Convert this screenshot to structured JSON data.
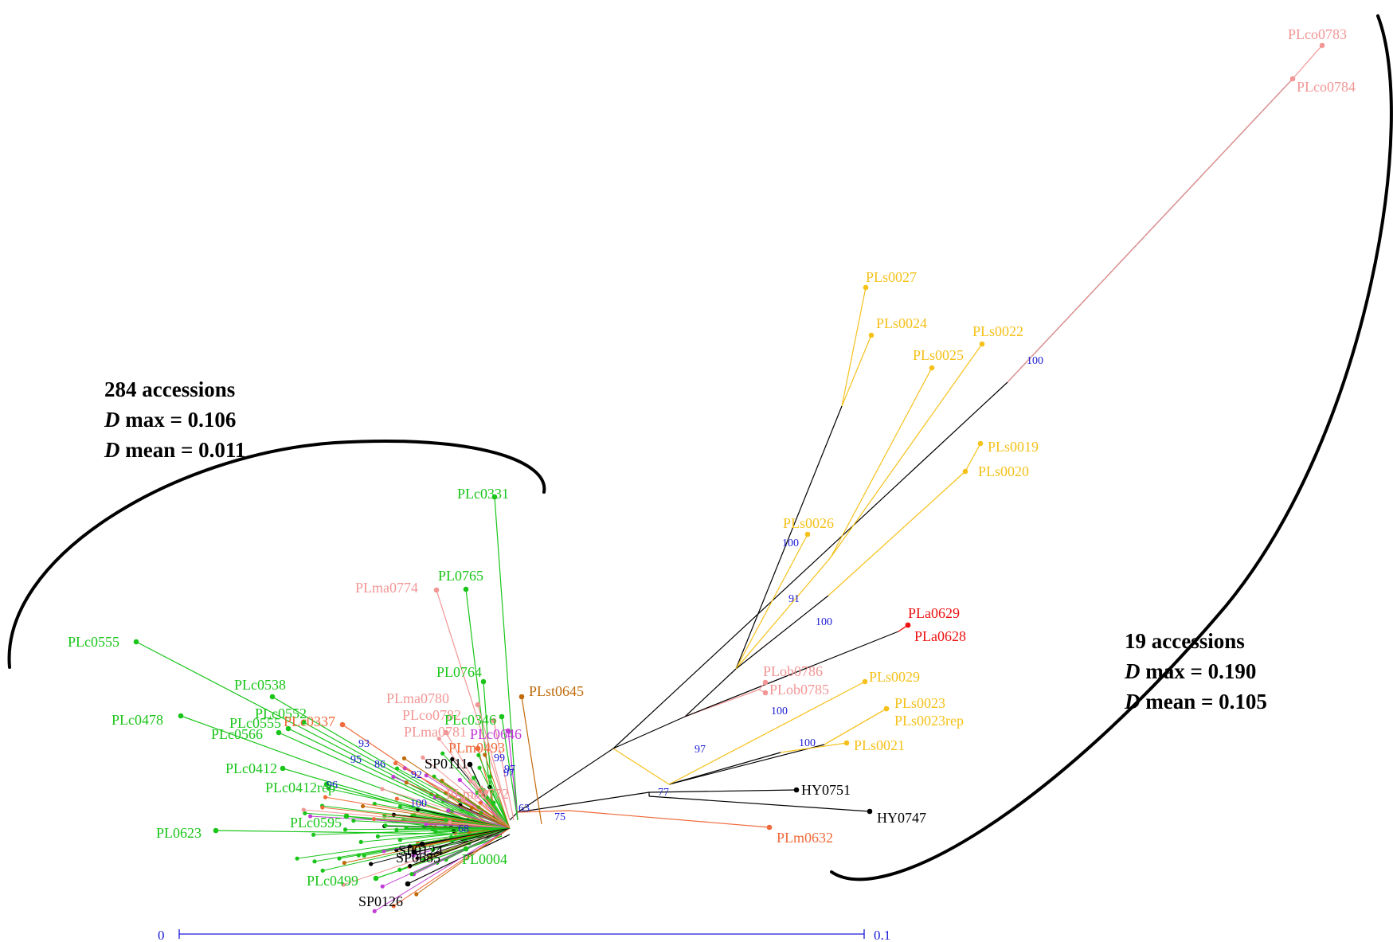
{
  "colors": {
    "green": "#19c519",
    "pink": "#f29696",
    "salmon": "#ef6a3a",
    "gold": "#f5c11a",
    "red": "#ee1111",
    "purple": "#c33cd6",
    "brown": "#c06a0a",
    "black": "#000000",
    "blue": "#1a1ad6"
  },
  "clusters": {
    "left": {
      "count_text": "284 accessions",
      "dmax_label": "max = 0.106",
      "dmean_label": "mean = 0.011",
      "d_symbol": "D"
    },
    "right": {
      "count_text": "19 accessions",
      "dmax_label": "max = 0.190",
      "dmean_label": "mean = 0.105",
      "d_symbol": "D"
    }
  },
  "scale_bar": {
    "start_label": "0",
    "end_label": "0.1"
  },
  "leaves": [
    {
      "label": "PLco0783",
      "color": "pink"
    },
    {
      "label": "PLco0784",
      "color": "pink"
    },
    {
      "label": "PLs0027",
      "color": "gold"
    },
    {
      "label": "PLs0024",
      "color": "gold"
    },
    {
      "label": "PLs0022",
      "color": "gold"
    },
    {
      "label": "PLs0025",
      "color": "gold"
    },
    {
      "label": "PLs0019",
      "color": "gold"
    },
    {
      "label": "PLs0020",
      "color": "gold"
    },
    {
      "label": "PLs0026",
      "color": "gold"
    },
    {
      "label": "PLa0629",
      "color": "red"
    },
    {
      "label": "PLa0628",
      "color": "red"
    },
    {
      "label": "PLob0786",
      "color": "pink"
    },
    {
      "label": "PLob0785",
      "color": "pink"
    },
    {
      "label": "PLs0029",
      "color": "gold"
    },
    {
      "label": "PLs0023",
      "color": "gold"
    },
    {
      "label": "PLs0023rep",
      "color": "gold"
    },
    {
      "label": "PLs0021",
      "color": "gold"
    },
    {
      "label": "HY0751",
      "color": "black"
    },
    {
      "label": "HY0747",
      "color": "black"
    },
    {
      "label": "PLm0632",
      "color": "salmon"
    },
    {
      "label": "PLc0331",
      "color": "green"
    },
    {
      "label": "PL0765",
      "color": "green"
    },
    {
      "label": "PLma0774",
      "color": "pink"
    },
    {
      "label": "PL0764",
      "color": "green"
    },
    {
      "label": "PLst0645",
      "color": "brown"
    },
    {
      "label": "PLma0780",
      "color": "pink"
    },
    {
      "label": "PLco0782",
      "color": "pink"
    },
    {
      "label": "PLc0555",
      "color": "green"
    },
    {
      "label": "PLc0538",
      "color": "green"
    },
    {
      "label": "PLc0478",
      "color": "green"
    },
    {
      "label": "PLc0552",
      "color": "green"
    },
    {
      "label": "PLc0566",
      "color": "green"
    },
    {
      "label": "PLc0555",
      "color": "green"
    },
    {
      "label": "PLc0412",
      "color": "green"
    },
    {
      "label": "PLc0412rep",
      "color": "green"
    },
    {
      "label": "SP0111",
      "color": "black"
    },
    {
      "label": "PLm0493",
      "color": "salmon"
    },
    {
      "label": "PL0623",
      "color": "green"
    },
    {
      "label": "PLc0595",
      "color": "green"
    },
    {
      "label": "PLc0499",
      "color": "green"
    },
    {
      "label": "SP0126",
      "color": "black"
    },
    {
      "label": "PL0004",
      "color": "green"
    },
    {
      "label": "SP0685",
      "color": "black"
    },
    {
      "label": "SP0124",
      "color": "black"
    },
    {
      "label": "PLma0772",
      "color": "pink"
    },
    {
      "label": "PLc0646",
      "color": "purple"
    },
    {
      "label": "PLma0781",
      "color": "pink"
    },
    {
      "label": "PLc0346",
      "color": "green"
    },
    {
      "label": "PLc0337",
      "color": "salmon"
    }
  ],
  "support_values": [
    "100",
    "100",
    "91",
    "100",
    "100",
    "100",
    "97",
    "77",
    "75",
    "63",
    "99",
    "97",
    "100",
    "92",
    "93",
    "95",
    "96",
    "97",
    "68",
    "86"
  ]
}
